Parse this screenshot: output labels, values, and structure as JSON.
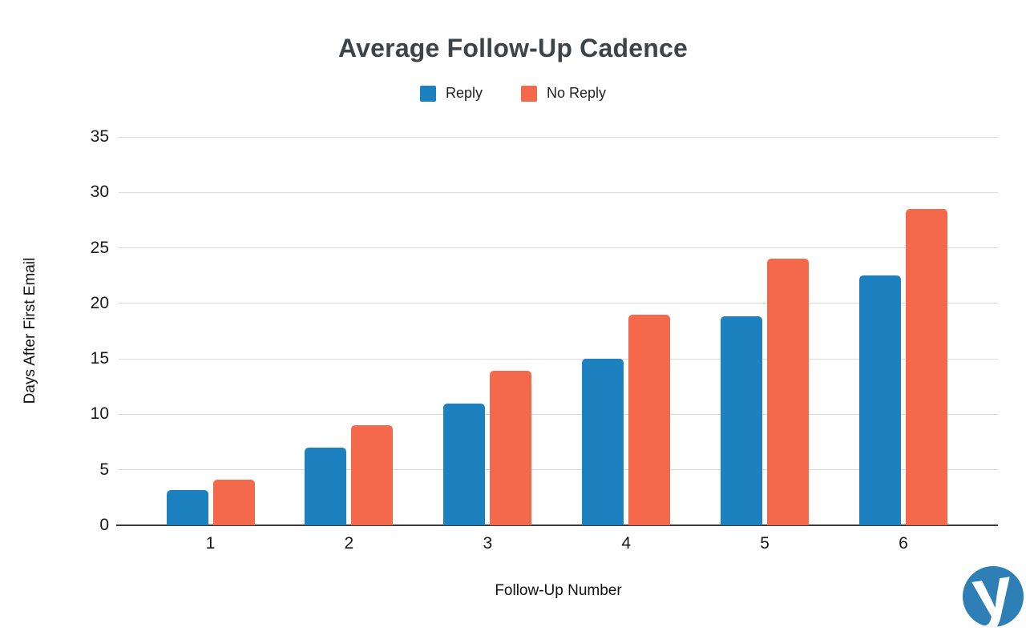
{
  "chart_data": {
    "type": "bar",
    "title": "Average Follow-Up Cadence",
    "categories": [
      "1",
      "2",
      "3",
      "4",
      "5",
      "6"
    ],
    "series": [
      {
        "name": "Reply",
        "color": "#1e81bf",
        "values": [
          3.2,
          7.0,
          11.0,
          15.0,
          18.8,
          22.5
        ]
      },
      {
        "name": "No Reply",
        "color": "#f4694c",
        "values": [
          4.1,
          9.0,
          13.9,
          19.0,
          24.0,
          28.5
        ]
      }
    ],
    "xlabel": "Follow-Up Number",
    "ylabel": "Days After First Email",
    "ylim": [
      0,
      35
    ],
    "yticks": [
      0,
      5,
      10,
      15,
      20,
      25,
      30,
      35
    ],
    "grid": true,
    "gridline_color": "#d9d9d9",
    "axis_line_color": "#3b3b3b",
    "title_color": "#3e4347",
    "legend_position": "top"
  },
  "logo": {
    "letter": "y",
    "circle_color": "#2d7fb5",
    "letter_color": "#ffffff"
  }
}
